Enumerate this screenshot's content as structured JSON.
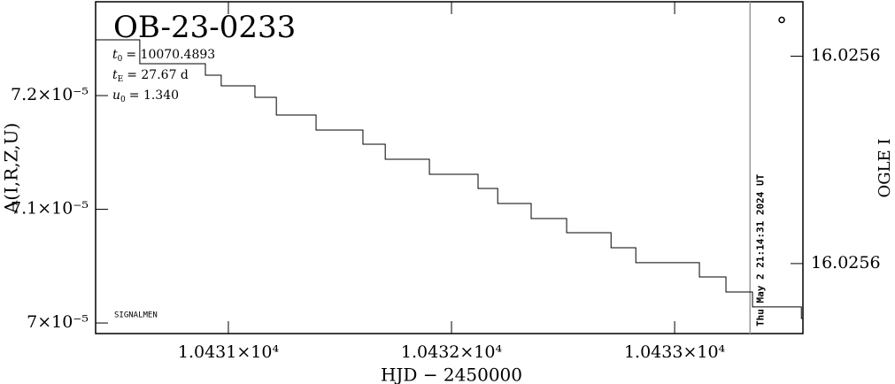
{
  "chart_data": {
    "type": "line",
    "title": "OB-23-0233",
    "annotations": [
      {
        "symbol": "t",
        "sub": "0",
        "text": "= 10070.4893"
      },
      {
        "symbol": "t",
        "sub": "E",
        "text": "= 27.67 d"
      },
      {
        "symbol": "u",
        "sub": "0",
        "text": "= 1.340"
      }
    ],
    "credit": "SIGNALMEN",
    "xlabel": "HJD − 2450000",
    "ylabel": "A(I,R,Z,U)",
    "y2label": "OGLE I",
    "now_line": {
      "x": 10433.338,
      "label": "Thu May  2 21:14:31 2024 UT"
    },
    "xlim": [
      10430.405,
      10433.575
    ],
    "xticks": [
      {
        "value": 10431,
        "label": "1.0431×10⁴"
      },
      {
        "value": 10432,
        "label": "1.0432×10⁴"
      },
      {
        "value": 10433,
        "label": "1.0433×10⁴"
      }
    ],
    "ylim": [
      6.9907e-05,
      7.2825e-05
    ],
    "yticks": [
      {
        "value": 7e-05,
        "label": "7×10⁻⁵"
      },
      {
        "value": 7.1e-05,
        "label": "7.1×10⁻⁵"
      },
      {
        "value": 7.2e-05,
        "label": "7.2×10⁻⁵"
      }
    ],
    "y2lim": [
      16.025667,
      16.025539
    ],
    "y2ticks": [
      {
        "value": 16.02556,
        "label": "16.0256"
      },
      {
        "value": 16.02564,
        "label": "16.0256"
      }
    ],
    "step": "post",
    "series": [
      {
        "color": "#000000",
        "x": [
          10430.405,
          10430.603,
          10430.897,
          10430.968,
          10431.119,
          10431.215,
          10431.393,
          10431.603,
          10431.703,
          10431.901,
          10432.119,
          10432.207,
          10432.357,
          10432.516,
          10432.715,
          10432.826,
          10433.111,
          10433.23,
          10433.349,
          10433.568
        ],
        "values": [
          7.249e-05,
          7.228e-05,
          7.2179e-05,
          7.2086e-05,
          7.1985e-05,
          7.1829e-05,
          7.1697e-05,
          7.1572e-05,
          7.144e-05,
          7.1308e-05,
          7.1183e-05,
          7.1051e-05,
          7.0919e-05,
          7.0794e-05,
          7.0662e-05,
          7.053e-05,
          7.0405e-05,
          7.0273e-05,
          7.0141e-05,
          7.004e-05
        ]
      },
      {
        "color": "#000000",
        "axis": "y2",
        "marker": "circle",
        "x": [
          10433.48
        ],
        "values": [
          16.025546
        ]
      }
    ]
  }
}
